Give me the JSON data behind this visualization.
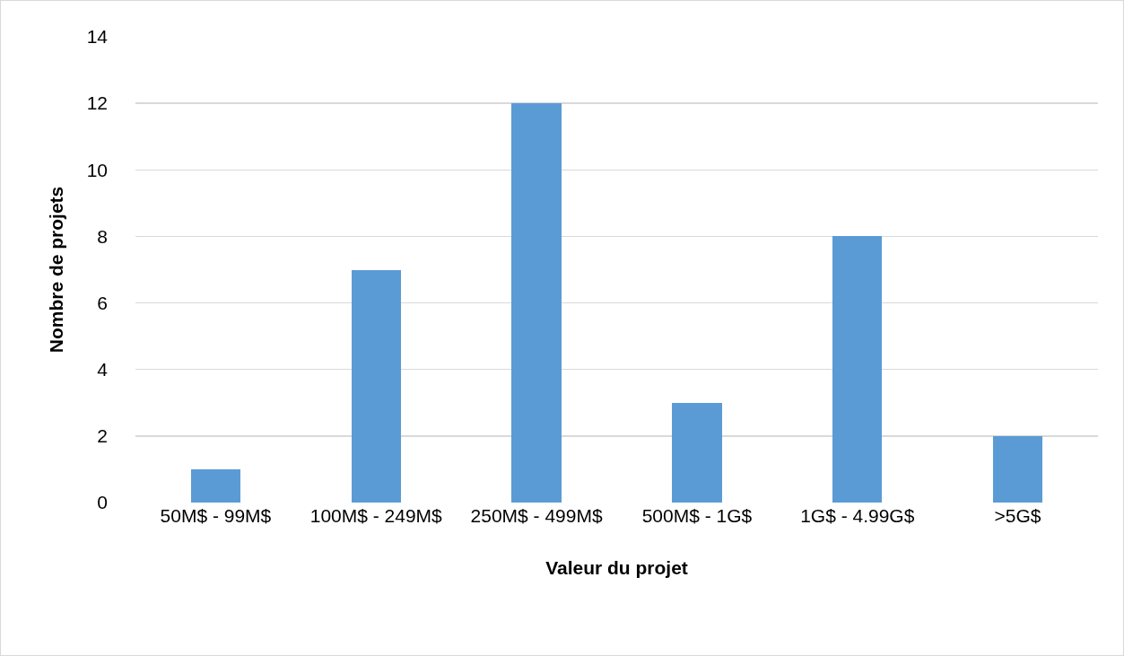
{
  "chart_data": {
    "type": "bar",
    "xlabel": "Valeur du projet",
    "ylabel": "Nombre de projets",
    "categories": [
      "50M$ - 99M$",
      "100M$ - 249M$",
      "250M$ - 499M$",
      "500M$ - 1G$",
      "1G$ - 4.99G$",
      ">5G$"
    ],
    "values": [
      1,
      7,
      12,
      3,
      8,
      2
    ],
    "color": "#5b9bd5",
    "ylim": [
      0,
      14
    ],
    "yticks": [
      0,
      2,
      4,
      6,
      8,
      10,
      12,
      14
    ],
    "grid": "y",
    "legend": false
  }
}
